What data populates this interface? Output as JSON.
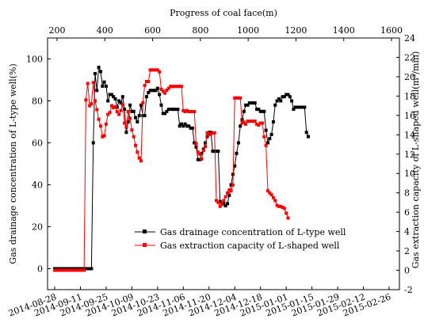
{
  "chart_data": {
    "type": "line",
    "axes": {
      "x_bottom": {
        "tick_labels": [
          "2014-08-28",
          "2014-09-11",
          "2014-09-25",
          "2014-10-09",
          "2014-10-23",
          "2014-11-06",
          "2014-11-20",
          "2014-12-04",
          "2014-12-18",
          "2015-01-01",
          "2015-01-15",
          "2015-01-29",
          "2015-02-12",
          "2015-02-26"
        ]
      },
      "x_top": {
        "label": "Progress of coal face(m)",
        "ticks": [
          200,
          400,
          600,
          800,
          1000,
          1200,
          1400,
          1600
        ]
      },
      "y_left": {
        "label": "Gas drainage concentration of L-type well(%)",
        "range": [
          -10,
          110
        ],
        "ticks": [
          0,
          20,
          40,
          60,
          80,
          100
        ]
      },
      "y_right": {
        "label": "Gas extraction capacity of L-shaped well(m³/min)",
        "range": [
          -2,
          24
        ],
        "ticks": [
          -2,
          0,
          2,
          4,
          6,
          8,
          10,
          12,
          14,
          16,
          18,
          20,
          22,
          24
        ]
      }
    },
    "legend": {
      "position": "bottom-center",
      "entries": [
        "Gas drainage concentration of L-type well",
        "Gas extraction capacity of L-shaped well"
      ]
    },
    "series": [
      {
        "name": "Gas drainage concentration of L-type well",
        "axis": "left",
        "color": "#000000",
        "marker": "square",
        "points": [
          [
            "2014-08-28",
            0
          ],
          [
            "2014-08-29",
            0
          ],
          [
            "2014-08-30",
            0
          ],
          [
            "2014-08-31",
            0
          ],
          [
            "2014-09-01",
            0
          ],
          [
            "2014-09-02",
            0
          ],
          [
            "2014-09-03",
            0
          ],
          [
            "2014-09-04",
            0
          ],
          [
            "2014-09-05",
            0
          ],
          [
            "2014-09-06",
            0
          ],
          [
            "2014-09-07",
            0
          ],
          [
            "2014-09-08",
            0
          ],
          [
            "2014-09-09",
            0
          ],
          [
            "2014-09-10",
            0
          ],
          [
            "2014-09-11",
            0
          ],
          [
            "2014-09-12",
            0
          ],
          [
            "2014-09-13",
            0
          ],
          [
            "2014-09-14",
            0
          ],
          [
            "2014-09-15",
            0
          ],
          [
            "2014-09-16",
            0
          ],
          [
            "2014-09-17",
            0
          ],
          [
            "2014-09-18",
            60
          ],
          [
            "2014-09-19",
            93
          ],
          [
            "2014-09-20",
            85
          ],
          [
            "2014-09-21",
            96
          ],
          [
            "2014-09-22",
            94
          ],
          [
            "2014-09-23",
            87
          ],
          [
            "2014-09-24",
            89
          ],
          [
            "2014-09-25",
            87
          ],
          [
            "2014-09-26",
            80
          ],
          [
            "2014-09-27",
            83
          ],
          [
            "2014-09-28",
            83
          ],
          [
            "2014-09-29",
            82
          ],
          [
            "2014-09-30",
            81
          ],
          [
            "2014-10-01",
            77
          ],
          [
            "2014-10-02",
            80
          ],
          [
            "2014-10-03",
            79
          ],
          [
            "2014-10-04",
            82
          ],
          [
            "2014-10-05",
            76
          ],
          [
            "2014-10-06",
            65
          ],
          [
            "2014-10-07",
            70
          ],
          [
            "2014-10-08",
            78
          ],
          [
            "2014-10-09",
            75
          ],
          [
            "2014-10-10",
            75
          ],
          [
            "2014-10-11",
            72
          ],
          [
            "2014-10-12",
            70
          ],
          [
            "2014-10-13",
            73
          ],
          [
            "2014-10-14",
            78
          ],
          [
            "2014-10-15",
            73
          ],
          [
            "2014-10-16",
            73
          ],
          [
            "2014-10-17",
            82
          ],
          [
            "2014-10-18",
            84
          ],
          [
            "2014-10-19",
            85
          ],
          [
            "2014-10-20",
            85
          ],
          [
            "2014-10-21",
            85
          ],
          [
            "2014-10-22",
            85
          ],
          [
            "2014-10-23",
            86
          ],
          [
            "2014-10-24",
            83
          ],
          [
            "2014-10-25",
            78
          ],
          [
            "2014-10-26",
            74
          ],
          [
            "2014-10-27",
            74
          ],
          [
            "2014-10-28",
            75
          ],
          [
            "2014-10-29",
            76
          ],
          [
            "2014-10-30",
            76
          ],
          [
            "2014-10-31",
            76
          ],
          [
            "2014-11-01",
            76
          ],
          [
            "2014-11-02",
            76
          ],
          [
            "2014-11-03",
            76
          ],
          [
            "2014-11-04",
            68
          ],
          [
            "2014-11-05",
            69
          ],
          [
            "2014-11-06",
            68
          ],
          [
            "2014-11-07",
            69
          ],
          [
            "2014-11-08",
            68
          ],
          [
            "2014-11-09",
            68
          ],
          [
            "2014-11-10",
            67
          ],
          [
            "2014-11-11",
            67
          ],
          [
            "2014-11-12",
            60
          ],
          [
            "2014-11-13",
            58
          ],
          [
            "2014-11-14",
            52
          ],
          [
            "2014-11-15",
            52
          ],
          [
            "2014-11-16",
            55
          ],
          [
            "2014-11-17",
            57
          ],
          [
            "2014-11-18",
            60
          ],
          [
            "2014-11-19",
            63
          ],
          [
            "2014-11-20",
            65
          ],
          [
            "2014-11-21",
            65
          ],
          [
            "2014-11-22",
            56
          ],
          [
            "2014-11-23",
            56
          ],
          [
            "2014-11-24",
            56
          ],
          [
            "2014-11-25",
            56
          ],
          [
            "2014-11-26",
            32
          ],
          [
            "2014-11-27",
            31
          ],
          [
            "2014-11-28",
            31
          ],
          [
            "2014-11-29",
            30
          ],
          [
            "2014-11-30",
            31
          ],
          [
            "2014-12-01",
            35
          ],
          [
            "2014-12-02",
            40
          ],
          [
            "2014-12-03",
            45
          ],
          [
            "2014-12-04",
            49
          ],
          [
            "2014-12-05",
            55
          ],
          [
            "2014-12-06",
            60
          ],
          [
            "2014-12-07",
            68
          ],
          [
            "2014-12-08",
            71
          ],
          [
            "2014-12-09",
            75
          ],
          [
            "2014-12-10",
            78
          ],
          [
            "2014-12-11",
            78
          ],
          [
            "2014-12-12",
            79
          ],
          [
            "2014-12-13",
            79
          ],
          [
            "2014-12-14",
            79
          ],
          [
            "2014-12-15",
            79
          ],
          [
            "2014-12-16",
            76
          ],
          [
            "2014-12-17",
            76
          ],
          [
            "2014-12-18",
            75
          ],
          [
            "2014-12-19",
            75
          ],
          [
            "2014-12-20",
            75
          ],
          [
            "2014-12-21",
            66
          ],
          [
            "2014-12-22",
            60
          ],
          [
            "2014-12-23",
            62
          ],
          [
            "2014-12-24",
            64
          ],
          [
            "2014-12-25",
            70
          ],
          [
            "2014-12-26",
            78
          ],
          [
            "2014-12-27",
            80
          ],
          [
            "2014-12-28",
            81
          ],
          [
            "2014-12-29",
            80
          ],
          [
            "2014-12-30",
            82
          ],
          [
            "2014-12-31",
            82
          ],
          [
            "2015-01-01",
            83
          ],
          [
            "2015-01-02",
            83
          ],
          [
            "2015-01-03",
            82
          ],
          [
            "2015-01-04",
            80
          ],
          [
            "2015-01-05",
            76
          ],
          [
            "2015-01-06",
            77
          ],
          [
            "2015-01-07",
            77
          ],
          [
            "2015-01-08",
            77
          ],
          [
            "2015-01-09",
            77
          ],
          [
            "2015-01-10",
            77
          ],
          [
            "2015-01-11",
            77
          ],
          [
            "2015-01-12",
            65
          ],
          [
            "2015-01-13",
            63
          ]
        ]
      },
      {
        "name": "Gas extraction capacity of L-shaped well",
        "axis": "right",
        "color": "#ff0000",
        "marker": "square",
        "points": [
          [
            "2014-08-28",
            0
          ],
          [
            "2014-08-29",
            0
          ],
          [
            "2014-08-30",
            0
          ],
          [
            "2014-08-31",
            0
          ],
          [
            "2014-09-01",
            0
          ],
          [
            "2014-09-02",
            0
          ],
          [
            "2014-09-03",
            0
          ],
          [
            "2014-09-04",
            0
          ],
          [
            "2014-09-05",
            0
          ],
          [
            "2014-09-06",
            0
          ],
          [
            "2014-09-07",
            0
          ],
          [
            "2014-09-08",
            0
          ],
          [
            "2014-09-09",
            0
          ],
          [
            "2014-09-10",
            0
          ],
          [
            "2014-09-11",
            0
          ],
          [
            "2014-09-12",
            0
          ],
          [
            "2014-09-13",
            0
          ],
          [
            "2014-09-14",
            17.6
          ],
          [
            "2014-09-15",
            19.3
          ],
          [
            "2014-09-16",
            17.0
          ],
          [
            "2014-09-17",
            17.2
          ],
          [
            "2014-09-18",
            19.4
          ],
          [
            "2014-09-19",
            17.5
          ],
          [
            "2014-09-20",
            16.6
          ],
          [
            "2014-09-21",
            15.6
          ],
          [
            "2014-09-22",
            14.9
          ],
          [
            "2014-09-23",
            13.8
          ],
          [
            "2014-09-24",
            13.9
          ],
          [
            "2014-09-25",
            15.1
          ],
          [
            "2014-09-26",
            16.1
          ],
          [
            "2014-09-27",
            16.3
          ],
          [
            "2014-09-28",
            17.0
          ],
          [
            "2014-09-29",
            16.8
          ],
          [
            "2014-09-30",
            16.9
          ],
          [
            "2014-10-01",
            16.4
          ],
          [
            "2014-10-02",
            16.1
          ],
          [
            "2014-10-03",
            16.5
          ],
          [
            "2014-10-04",
            17.1
          ],
          [
            "2014-10-05",
            15.2
          ],
          [
            "2014-10-06",
            14.8
          ],
          [
            "2014-10-07",
            16.4
          ],
          [
            "2014-10-08",
            15.7
          ],
          [
            "2014-10-09",
            14.5
          ],
          [
            "2014-10-10",
            13.8
          ],
          [
            "2014-10-11",
            12.9
          ],
          [
            "2014-10-12",
            12.2
          ],
          [
            "2014-10-13",
            11.6
          ],
          [
            "2014-10-14",
            11.3
          ],
          [
            "2014-10-15",
            17.3
          ],
          [
            "2014-10-16",
            19.1
          ],
          [
            "2014-10-17",
            19.5
          ],
          [
            "2014-10-18",
            19.5
          ],
          [
            "2014-10-19",
            20.7
          ],
          [
            "2014-10-20",
            20.7
          ],
          [
            "2014-10-21",
            20.7
          ],
          [
            "2014-10-22",
            20.7
          ],
          [
            "2014-10-23",
            20.7
          ],
          [
            "2014-10-24",
            20.5
          ],
          [
            "2014-10-25",
            18.7
          ],
          [
            "2014-10-26",
            18.5
          ],
          [
            "2014-10-27",
            18.3
          ],
          [
            "2014-10-28",
            18.6
          ],
          [
            "2014-10-29",
            18.8
          ],
          [
            "2014-10-30",
            19.0
          ],
          [
            "2014-10-31",
            19.0
          ],
          [
            "2014-11-01",
            19.0
          ],
          [
            "2014-11-02",
            19.0
          ],
          [
            "2014-11-03",
            19.0
          ],
          [
            "2014-11-04",
            19.0
          ],
          [
            "2014-11-05",
            19.0
          ],
          [
            "2014-11-06",
            16.5
          ],
          [
            "2014-11-07",
            16.4
          ],
          [
            "2014-11-08",
            16.5
          ],
          [
            "2014-11-09",
            16.4
          ],
          [
            "2014-11-10",
            16.4
          ],
          [
            "2014-11-11",
            16.4
          ],
          [
            "2014-11-12",
            16.4
          ],
          [
            "2014-11-13",
            13.1
          ],
          [
            "2014-11-14",
            12.2
          ],
          [
            "2014-11-15",
            12.0
          ],
          [
            "2014-11-16",
            11.5
          ],
          [
            "2014-11-17",
            12.4
          ],
          [
            "2014-11-18",
            12.8
          ],
          [
            "2014-11-19",
            14.2
          ],
          [
            "2014-11-20",
            14.0
          ],
          [
            "2014-11-21",
            14.1
          ],
          [
            "2014-11-22",
            14.2
          ],
          [
            "2014-11-23",
            14.2
          ],
          [
            "2014-11-24",
            7.2
          ],
          [
            "2014-11-25",
            7.0
          ],
          [
            "2014-11-26",
            6.6
          ],
          [
            "2014-11-27",
            6.8
          ],
          [
            "2014-11-28",
            7.2
          ],
          [
            "2014-11-29",
            7.6
          ],
          [
            "2014-11-30",
            8.0
          ],
          [
            "2014-12-01",
            8.3
          ],
          [
            "2014-12-02",
            8.2
          ],
          [
            "2014-12-03",
            8.8
          ],
          [
            "2014-12-04",
            17.8
          ],
          [
            "2014-12-05",
            17.8
          ],
          [
            "2014-12-06",
            17.8
          ],
          [
            "2014-12-07",
            17.8
          ],
          [
            "2014-12-08",
            15.2
          ],
          [
            "2014-12-09",
            15.3
          ],
          [
            "2014-12-10",
            15.1
          ],
          [
            "2014-12-11",
            15.4
          ],
          [
            "2014-12-12",
            15.4
          ],
          [
            "2014-12-13",
            15.4
          ],
          [
            "2014-12-14",
            15.4
          ],
          [
            "2014-12-15",
            15.4
          ],
          [
            "2014-12-16",
            15.1
          ],
          [
            "2014-12-17",
            15.0
          ],
          [
            "2014-12-18",
            15.2
          ],
          [
            "2014-12-19",
            15.2
          ],
          [
            "2014-12-20",
            13.8
          ],
          [
            "2014-12-21",
            12.9
          ],
          [
            "2014-12-22",
            8.2
          ],
          [
            "2014-12-23",
            8.0
          ],
          [
            "2014-12-24",
            7.8
          ],
          [
            "2014-12-25",
            7.5
          ],
          [
            "2014-12-26",
            7.2
          ],
          [
            "2014-12-27",
            6.7
          ],
          [
            "2014-12-28",
            6.6
          ],
          [
            "2014-12-29",
            6.6
          ],
          [
            "2014-12-30",
            6.5
          ],
          [
            "2014-12-31",
            6.4
          ],
          [
            "2015-01-01",
            5.9
          ],
          [
            "2015-01-02",
            5.4
          ]
        ]
      }
    ]
  }
}
